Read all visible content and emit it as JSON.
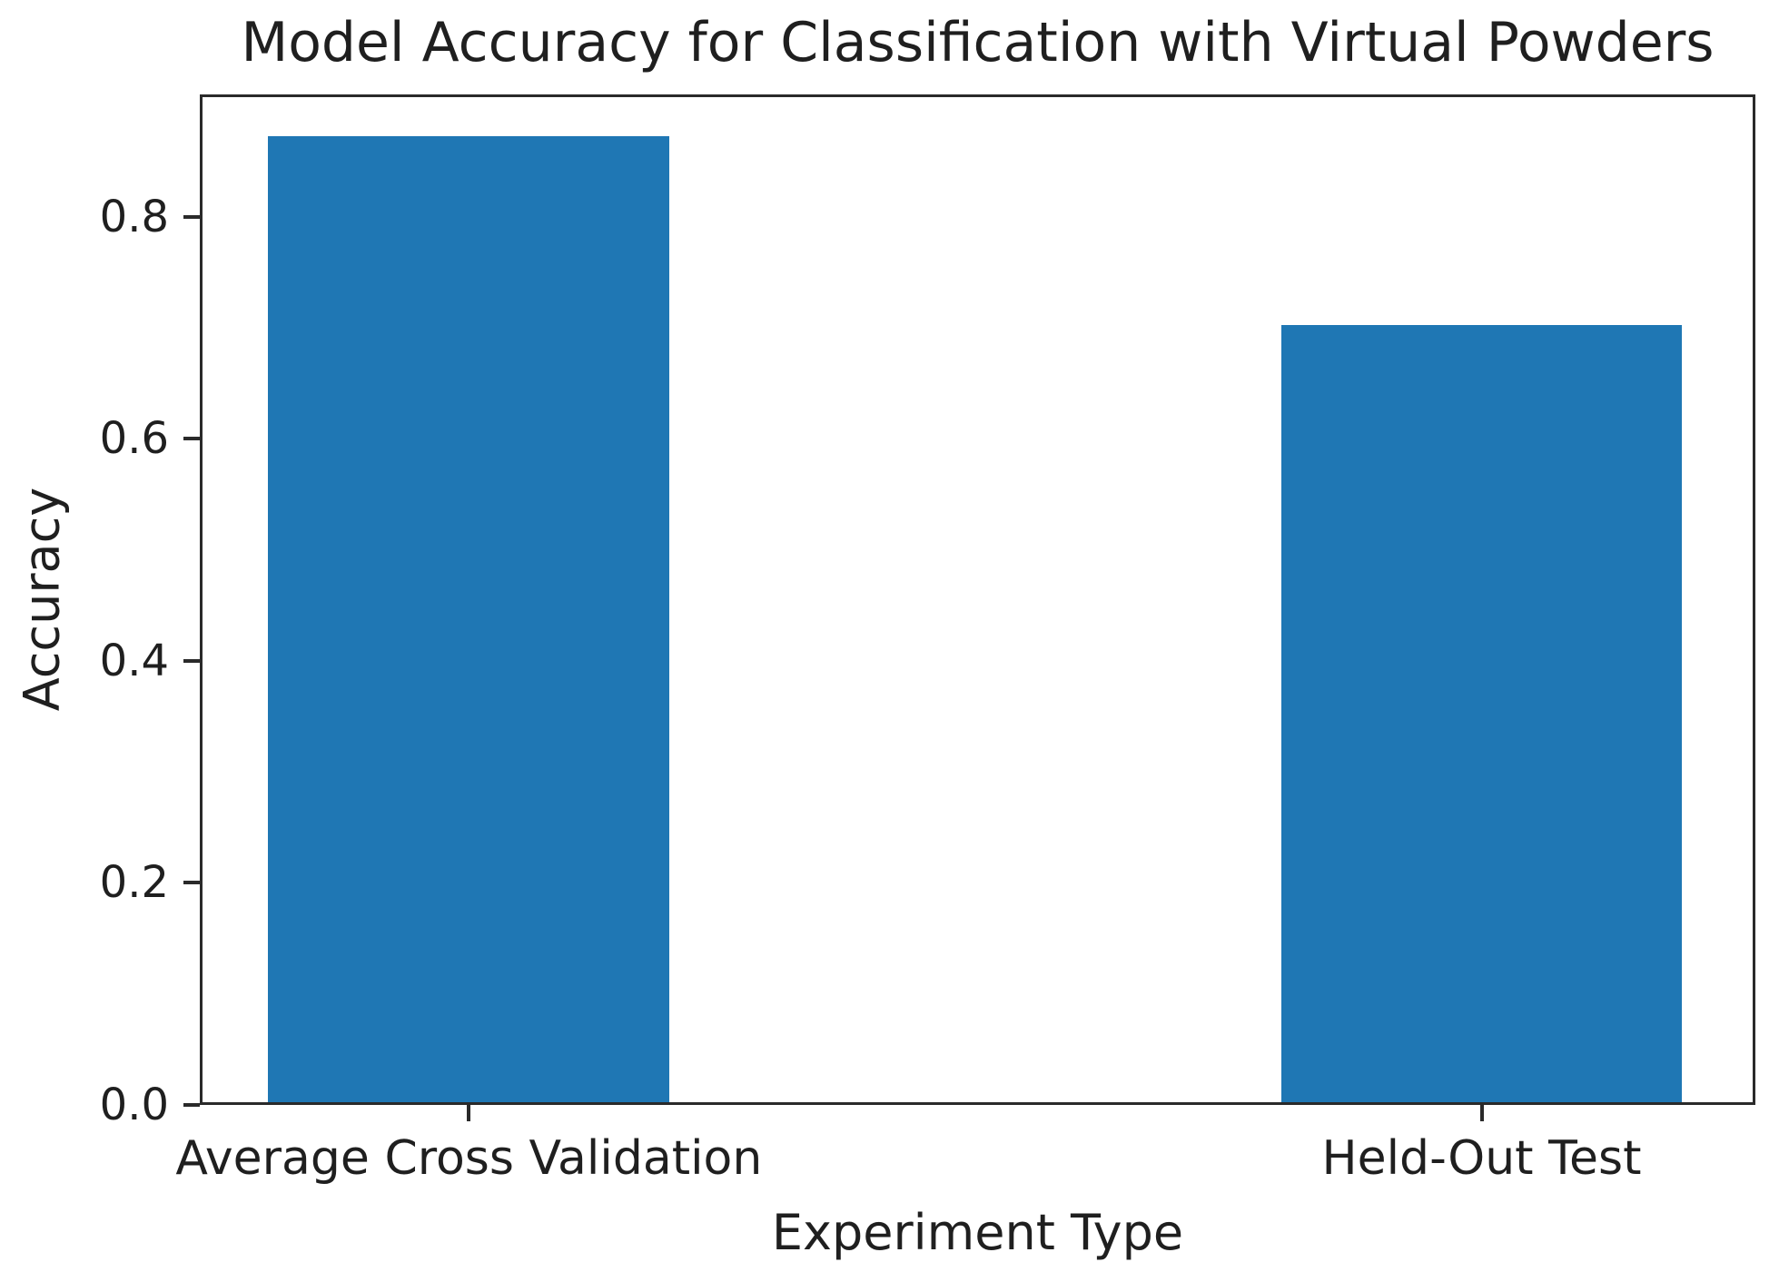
{
  "chart_data": {
    "type": "bar",
    "title": "Model Accuracy for Classification with Virtual Powders",
    "xlabel": "Experiment Type",
    "ylabel": "Accuracy",
    "categories": [
      "Average Cross Validation",
      "Held-Out Test"
    ],
    "values": [
      0.87,
      0.7
    ],
    "ytick_labels": [
      "0.0",
      "0.2",
      "0.4",
      "0.6",
      "0.8"
    ],
    "ytick_values": [
      0.0,
      0.2,
      0.4,
      0.6,
      0.8
    ],
    "ylim": [
      0,
      0.91
    ],
    "grid": false,
    "legend": false,
    "bar_color": "#1f77b4",
    "layout": {
      "bar_centers_frac": [
        0.173,
        0.824
      ],
      "bar_width_frac": 0.258,
      "legend_position": "none"
    }
  }
}
